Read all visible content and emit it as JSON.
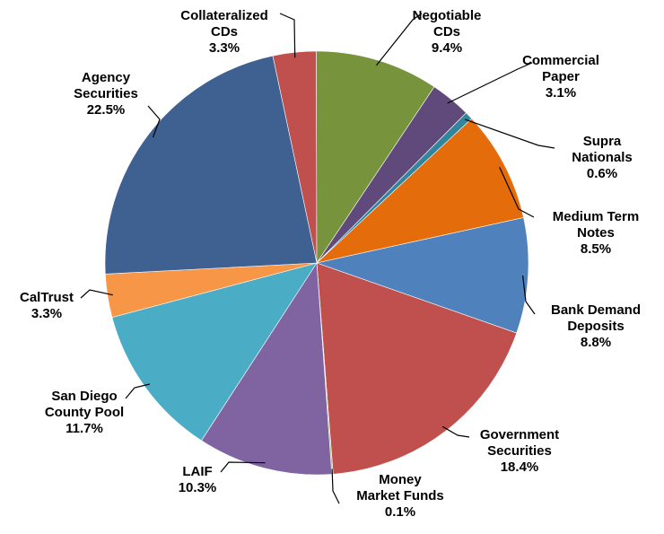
{
  "chart_data": {
    "type": "pie",
    "title": "",
    "slices": [
      {
        "lines": [
          "Collateralized",
          "CDs"
        ],
        "pct_label": "3.3%",
        "value": 3.3,
        "color": "#c0504d"
      },
      {
        "lines": [
          "Negotiable",
          "CDs"
        ],
        "pct_label": "9.4%",
        "value": 9.4,
        "color": "#77933c"
      },
      {
        "lines": [
          "Commercial",
          "Paper"
        ],
        "pct_label": "3.1%",
        "value": 3.1,
        "color": "#604a7b"
      },
      {
        "lines": [
          "Supra",
          "Nationals"
        ],
        "pct_label": "0.6%",
        "value": 0.6,
        "color": "#31859c"
      },
      {
        "lines": [
          "Medium Term",
          "Notes"
        ],
        "pct_label": "8.5%",
        "value": 8.5,
        "color": "#e46c0a"
      },
      {
        "lines": [
          "Bank Demand",
          "Deposits"
        ],
        "pct_label": "8.8%",
        "value": 8.8,
        "color": "#4f81bd"
      },
      {
        "lines": [
          "Government",
          "Securities"
        ],
        "pct_label": "18.4%",
        "value": 18.4,
        "color": "#c0504d"
      },
      {
        "lines": [
          "Money",
          "Market Funds"
        ],
        "pct_label": "0.1%",
        "value": 0.1,
        "color": "#9bbb59"
      },
      {
        "lines": [
          "LAIF"
        ],
        "pct_label": "10.3%",
        "value": 10.3,
        "color": "#8064a2"
      },
      {
        "lines": [
          "San Diego",
          "County Pool"
        ],
        "pct_label": "11.7%",
        "value": 11.7,
        "color": "#4bacc6"
      },
      {
        "lines": [
          "CalTrust"
        ],
        "pct_label": "3.3%",
        "value": 3.3,
        "color": "#f79646"
      },
      {
        "lines": [
          "Agency",
          "Securities"
        ],
        "pct_label": "22.5%",
        "value": 22.5,
        "color": "#3f6191"
      }
    ]
  }
}
